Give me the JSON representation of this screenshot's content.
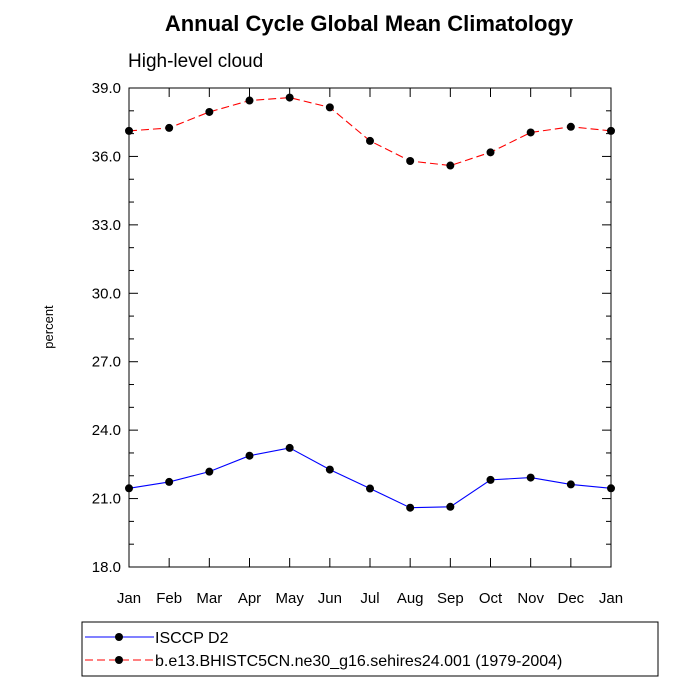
{
  "chart_data": {
    "type": "line",
    "title": "Annual Cycle Global Mean Climatology",
    "subtitle": "High-level cloud",
    "xlabel": "",
    "ylabel": "percent",
    "categories": [
      "Jan",
      "Feb",
      "Mar",
      "Apr",
      "May",
      "Jun",
      "Jul",
      "Aug",
      "Sep",
      "Oct",
      "Nov",
      "Dec",
      "Jan"
    ],
    "ylim": [
      18.0,
      39.0
    ],
    "yticks": [
      "18.0",
      "21.0",
      "24.0",
      "27.0",
      "30.0",
      "33.0",
      "36.0",
      "39.0"
    ],
    "grid": false,
    "legend_placement": "bottom",
    "series": [
      {
        "name": "ISCCP D2",
        "color": "#0000ff",
        "dash": "solid",
        "values": [
          21.45,
          21.73,
          22.18,
          22.88,
          23.22,
          22.27,
          21.44,
          20.6,
          20.64,
          21.82,
          21.92,
          21.62,
          21.45
        ]
      },
      {
        "name": "b.e13.BHISTC5CN.ne30_g16.sehires24.001 (1979-2004)",
        "color": "#ff0000",
        "dash": "dashed",
        "values": [
          37.12,
          37.25,
          37.95,
          38.45,
          38.58,
          38.15,
          36.68,
          35.8,
          35.6,
          36.18,
          37.05,
          37.3,
          37.12
        ]
      }
    ]
  }
}
